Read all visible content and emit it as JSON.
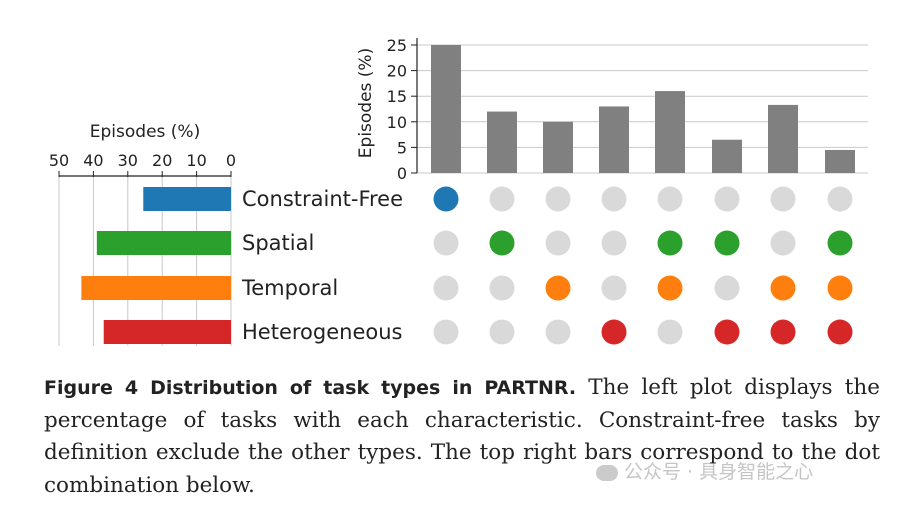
{
  "chart_data": [
    {
      "type": "bar",
      "orientation": "horizontal",
      "xlabel": "Episodes (%)",
      "xlim": [
        50,
        0
      ],
      "x_ticks": [
        "50",
        "40",
        "30",
        "20",
        "10",
        "0"
      ],
      "grid": true,
      "categories": [
        "Constraint-Free",
        "Spatial",
        "Temporal",
        "Heterogeneous"
      ],
      "values": [
        25.5,
        39,
        43.5,
        37
      ],
      "colors": [
        "#1f77b4",
        "#2ca02c",
        "#ff7f0e",
        "#d62728"
      ]
    },
    {
      "type": "bar",
      "ylabel": "Episodes (%)",
      "ylim": [
        0,
        26
      ],
      "y_ticks": [
        "0",
        "5",
        "10",
        "15",
        "20",
        "25"
      ],
      "grid": true,
      "values": [
        25,
        12,
        10,
        13,
        16,
        6.5,
        13.3,
        4.5
      ],
      "bar_color": "#808080"
    },
    {
      "type": "table",
      "description_of_rows": "dot matrix: rows are task types, columns match the top bars",
      "rows": [
        "Constraint-Free",
        "Spatial",
        "Temporal",
        "Heterogeneous"
      ],
      "matrix": [
        [
          1,
          0,
          0,
          0,
          0,
          0,
          0,
          0
        ],
        [
          0,
          1,
          0,
          0,
          1,
          1,
          0,
          1
        ],
        [
          0,
          0,
          1,
          0,
          1,
          0,
          1,
          1
        ],
        [
          0,
          0,
          0,
          1,
          0,
          1,
          1,
          1
        ]
      ],
      "inactive_color": "#d9d9d9"
    }
  ],
  "caption": {
    "label": "Figure 4  Distribution of task types in PARTNR.",
    "text": " The left plot displays the percentage of tasks with each characteristic. Constraint-free tasks by definition exclude the other types. The top right bars correspond to the dot combination below."
  },
  "watermark": "公众号 · 具身智能之心"
}
